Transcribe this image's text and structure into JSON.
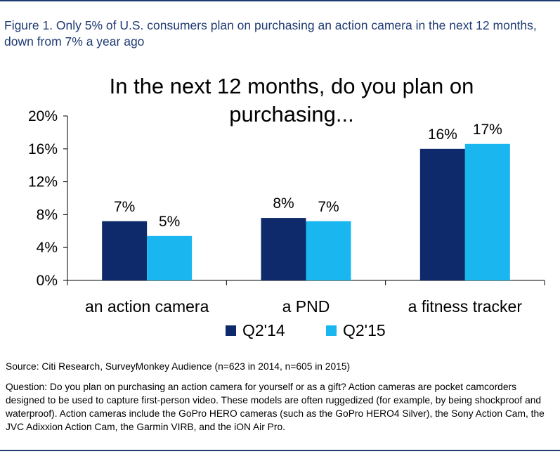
{
  "figure": {
    "caption": "Figure 1. Only 5% of U.S. consumers plan on purchasing an action camera in the next 12 months, down from 7% a year ago"
  },
  "chart_data": {
    "type": "bar",
    "title_lines": [
      "In the next 12 months, do you plan on",
      "purchasing..."
    ],
    "categories": [
      "an action camera",
      "a PND",
      "a fitness tracker"
    ],
    "series": [
      {
        "name": "Q2'14",
        "values": [
          7.2,
          7.6,
          16.0
        ],
        "labels": [
          "7%",
          "8%",
          "16%"
        ],
        "color": "#0f2a6b"
      },
      {
        "name": "Q2'15",
        "values": [
          5.4,
          7.2,
          16.6
        ],
        "labels": [
          "5%",
          "7%",
          "17%"
        ],
        "color": "#1ab6ef"
      }
    ],
    "yticks": [
      0,
      4,
      8,
      12,
      16,
      20
    ],
    "ytick_labels": [
      "0%",
      "4%",
      "8%",
      "12%",
      "16%",
      "20%"
    ],
    "ylim": [
      0,
      20
    ],
    "grid": false,
    "legend_position": "bottom"
  },
  "footer": {
    "source": "Source: Citi Research, SurveyMonkey Audience (n=623 in 2014, n=605 in 2015)",
    "question": "Question: Do you plan on purchasing an action camera for yourself or as a gift? Action cameras are pocket camcorders designed to be used to capture first-person video. These models are often ruggedized (for example, by being shockproof and waterproof). Action cameras include the GoPro HERO cameras (such as the GoPro HERO4 Silver), the Sony Action Cam, the JVC Adixxion Action Cam, the Garmin VIRB, and the iON Air Pro."
  }
}
